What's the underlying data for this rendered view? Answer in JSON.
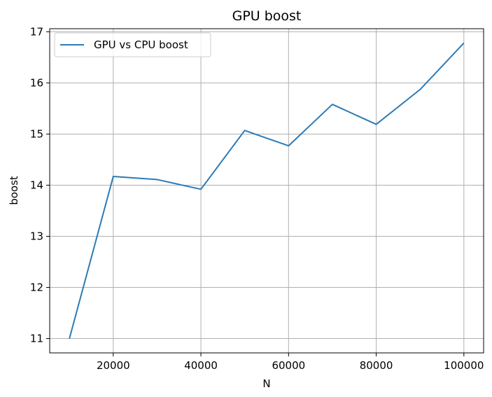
{
  "chart_data": {
    "type": "line",
    "title": "GPU boost",
    "xlabel": "N",
    "ylabel": "boost",
    "xlim": [
      5500,
      104500
    ],
    "ylim": [
      10.72,
      17.06
    ],
    "x_ticks": [
      20000,
      40000,
      60000,
      80000,
      100000
    ],
    "y_ticks": [
      11,
      12,
      13,
      14,
      15,
      16,
      17
    ],
    "grid": true,
    "legend_position": "top-left",
    "series": [
      {
        "name": "GPU vs CPU boost",
        "color": "#2c7bb6",
        "x": [
          10000,
          20000,
          30000,
          40000,
          50000,
          60000,
          70000,
          80000,
          90000,
          100000
        ],
        "y": [
          11.0,
          14.17,
          14.11,
          13.92,
          15.07,
          14.77,
          15.58,
          15.19,
          15.87,
          16.78
        ]
      }
    ]
  }
}
